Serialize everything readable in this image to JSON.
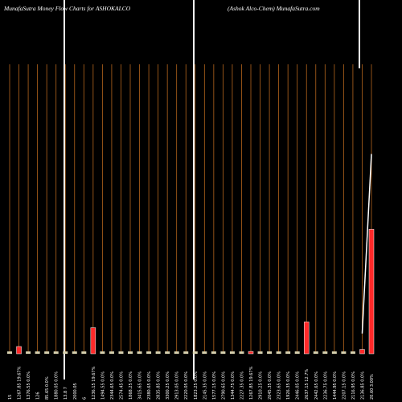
{
  "chart_data": {
    "type": "bar",
    "title": "MunafaSutra  Money Flow  Charts for ASHOKALCO",
    "subtitle": "(Ashok Alco-Chem) MunafaSutra.com",
    "categories": [
      "15",
      "1267.85 19.67%",
      "1376.55 0.0%",
      "126",
      "85.65 0.0%",
      "1880.05 0.0%",
      "13.8 7",
      "2000.05",
      "6",
      "1236.15 19.67%",
      "1494.55 0.0%",
      "2344.65 0.0%",
      "2574.45 0.0%",
      "1868.25 0.0%",
      "3415.65 0.0%",
      "2380.65 0.0%",
      "2835.85 0.0%",
      "3300.25 0.0%",
      "2913.05 0.0%",
      "2220.05 0.0%",
      "1823.25 0.0%",
      "2145.35 0.0%",
      "1577.15 0.0%",
      "2790.65 0.0%",
      "1344.75 0.0%",
      "2227.35 0.0%",
      "1267.85 19.67%",
      "2910.25 0.0%",
      "2045.35 0.0%",
      "2323.65 0.0%",
      "1926.35 0.0%",
      "2446.05 0.0%",
      "2637.15 12.7%",
      "2442.65 0.0%",
      "2236.75 0.0%",
      "1444.95 0.0%",
      "2207.15 0.0%",
      "2116.95 0.0%",
      "2136.85 0.0%",
      "20.60 3.00%"
    ],
    "values": [
      0.8,
      2.5,
      0.8,
      0.8,
      0.8,
      0.8,
      0.8,
      0.8,
      0.8,
      9,
      0.8,
      0.8,
      0.8,
      0.8,
      0.8,
      0.8,
      0.8,
      0.8,
      0.8,
      0.8,
      0.8,
      0.8,
      0.8,
      0.8,
      0.8,
      0.8,
      0.8,
      0.8,
      0.8,
      0.8,
      0.8,
      0.8,
      11,
      0.8,
      0.8,
      0.8,
      0.8,
      0.8,
      1.5,
      43
    ],
    "colors": [
      "#d8d2b0",
      "#ff2a2a",
      "#d8d2b0",
      "#d8d2b0",
      "#d8d2b0",
      "#d8d2b0",
      "#d8d2b0",
      "#d8d2b0",
      "#d8d2b0",
      "#ff2a2a",
      "#d8d2b0",
      "#d8d2b0",
      "#d8d2b0",
      "#d8d2b0",
      "#d8d2b0",
      "#d8d2b0",
      "#d8d2b0",
      "#d8d2b0",
      "#d8d2b0",
      "#d8d2b0",
      "#d8d2b0",
      "#d8d2b0",
      "#d8d2b0",
      "#d8d2b0",
      "#d8d2b0",
      "#d8d2b0",
      "#ff2a2a",
      "#d8d2b0",
      "#d8d2b0",
      "#d8d2b0",
      "#d8d2b0",
      "#d8d2b0",
      "#ff2a2a",
      "#d8d2b0",
      "#d8d2b0",
      "#d8d2b0",
      "#d8d2b0",
      "#d8d2b0",
      "#ff2a2a",
      "#ff2a2a"
    ],
    "price": [
      null,
      null,
      null,
      null,
      null,
      null,
      null,
      null,
      null,
      null,
      null,
      null,
      null,
      null,
      null,
      null,
      null,
      null,
      null,
      null,
      null,
      null,
      null,
      null,
      null,
      null,
      null,
      null,
      null,
      null,
      null,
      null,
      null,
      null,
      null,
      null,
      null,
      null,
      7,
      69
    ],
    "ylim": [
      0,
      100
    ]
  }
}
